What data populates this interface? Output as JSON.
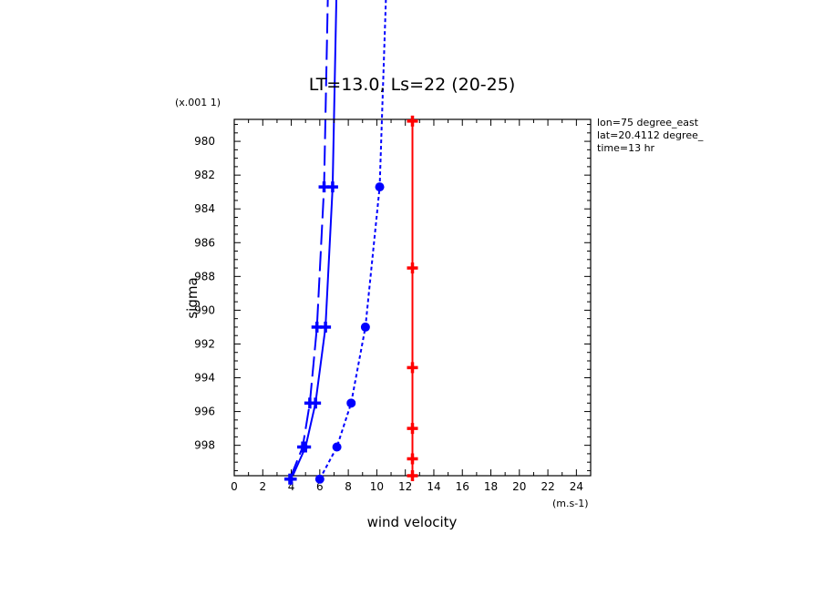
{
  "chart_data": {
    "type": "line",
    "title": "LT=13.0, Ls=22 (20-25)",
    "xlabel": "wind velocity",
    "ylabel": "sigma",
    "x_units": "(m.s-1)",
    "y_scale_note": "(x.001 1)",
    "xlim": [
      0,
      25
    ],
    "ylim": [
      999.8,
      978.7
    ],
    "x_ticks": [
      "0",
      "2",
      "4",
      "6",
      "8",
      "10",
      "12",
      "14",
      "16",
      "18",
      "20",
      "22",
      "24"
    ],
    "y_ticks": [
      "980",
      "982",
      "984",
      "986",
      "988",
      "990",
      "992",
      "994",
      "996",
      "998"
    ],
    "annotations": [
      "lon=75 degree_east",
      "lat=20.4112 degree_",
      "time=13 hr"
    ],
    "grid": false,
    "series": [
      {
        "color": "#0000ff",
        "dash": "22,7",
        "marker": "plus",
        "points": [
          [
            3.9,
            1000.0
          ],
          [
            4.8,
            998.1
          ],
          [
            5.3,
            995.5
          ],
          [
            5.8,
            991.0
          ],
          [
            6.3,
            982.7
          ],
          [
            6.6,
            970.0
          ]
        ]
      },
      {
        "color": "#0000ff",
        "dash": "",
        "marker": "plus",
        "points": [
          [
            4.0,
            1000.0
          ],
          [
            5.0,
            998.1
          ],
          [
            5.7,
            995.5
          ],
          [
            6.4,
            991.0
          ],
          [
            6.9,
            982.7
          ],
          [
            7.2,
            970.0
          ]
        ]
      },
      {
        "color": "#0000ff",
        "dash": "4,3",
        "marker": "circle",
        "points": [
          [
            6.0,
            1000.0
          ],
          [
            7.2,
            998.1
          ],
          [
            8.2,
            995.5
          ],
          [
            9.2,
            991.0
          ],
          [
            10.2,
            982.7
          ],
          [
            10.7,
            970.0
          ]
        ]
      },
      {
        "color": "#ff0000",
        "dash": "",
        "marker": "plus",
        "points": [
          [
            12.5,
            999.8
          ],
          [
            12.5,
            998.8
          ],
          [
            12.5,
            997.0
          ],
          [
            12.5,
            993.4
          ],
          [
            12.5,
            987.5
          ],
          [
            12.5,
            978.8
          ]
        ]
      }
    ]
  }
}
